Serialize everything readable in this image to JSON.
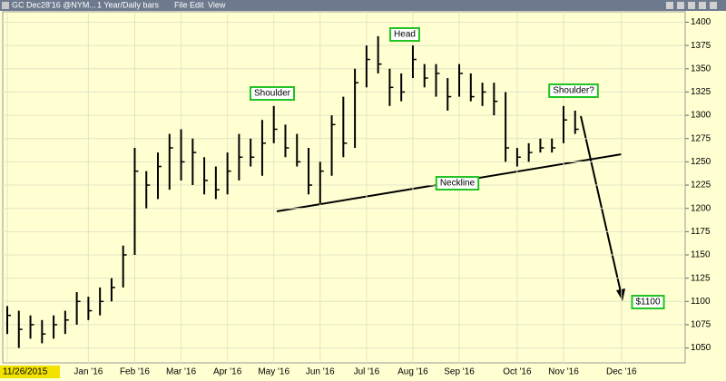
{
  "chart_data": {
    "type": "ohlc",
    "title": "GC Dec28'16 @NYM...",
    "subtitle": "1 Year/Daily bars",
    "menu": [
      "File",
      "Edit",
      "View"
    ],
    "categories": [
      "11/26/2015",
      null,
      null,
      null,
      null,
      null,
      null,
      "Jan '16",
      null,
      null,
      null,
      "Feb '16",
      null,
      null,
      null,
      "Mar '16",
      null,
      null,
      null,
      "Apr '16",
      null,
      null,
      null,
      "May '16",
      null,
      null,
      null,
      "Jun '16",
      null,
      null,
      null,
      "Jul '16",
      null,
      null,
      null,
      "Aug '16",
      null,
      null,
      null,
      "Sep '16",
      null,
      null,
      null,
      null,
      "Oct '16",
      null,
      null,
      null,
      "Nov '16",
      null,
      null,
      null,
      null,
      "Dec '16"
    ],
    "high": [
      1095,
      1090,
      1085,
      1080,
      1085,
      1090,
      1110,
      1105,
      1115,
      1125,
      1160,
      1265,
      1240,
      1260,
      1280,
      1285,
      1275,
      1255,
      1245,
      1260,
      1280,
      1275,
      1295,
      1310,
      1290,
      1280,
      1265,
      1250,
      1300,
      1320,
      1350,
      1375,
      1385,
      1350,
      1345,
      1375,
      1355,
      1355,
      1340,
      1355,
      1345,
      1335,
      1335,
      1325,
      1265,
      1270,
      1275,
      1275,
      1310,
      1305,
      null,
      null,
      null,
      null
    ],
    "low": [
      1065,
      1050,
      1060,
      1055,
      1060,
      1065,
      1075,
      1080,
      1085,
      1100,
      1115,
      1150,
      1200,
      1210,
      1220,
      1230,
      1225,
      1215,
      1210,
      1215,
      1230,
      1245,
      1235,
      1270,
      1255,
      1245,
      1215,
      1205,
      1235,
      1255,
      1265,
      1330,
      1345,
      1310,
      1315,
      1340,
      1330,
      1320,
      1305,
      1320,
      1315,
      1310,
      1300,
      1250,
      1245,
      1250,
      1260,
      1260,
      1270,
      1280,
      null,
      null,
      null,
      null
    ],
    "close": [
      1085,
      1070,
      1075,
      1065,
      1075,
      1080,
      1100,
      1090,
      1100,
      1115,
      1150,
      1240,
      1225,
      1245,
      1265,
      1250,
      1260,
      1230,
      1220,
      1240,
      1255,
      1255,
      1270,
      1285,
      1265,
      1250,
      1225,
      1240,
      1290,
      1270,
      1335,
      1360,
      1355,
      1330,
      1325,
      1360,
      1340,
      1345,
      1320,
      1345,
      1320,
      1325,
      1315,
      1265,
      1255,
      1260,
      1265,
      1265,
      1295,
      1285,
      null,
      null,
      null,
      null
    ],
    "color": "#000000",
    "ylim": [
      1034,
      1419
    ],
    "yticks": [
      1050,
      1075,
      1100,
      1125,
      1150,
      1175,
      1200,
      1225,
      1250,
      1275,
      1300,
      1325,
      1350,
      1375,
      1400
    ],
    "grid": true,
    "annotations": [
      "Head",
      "Shoulder",
      "Shoulder?",
      "Neckline",
      "$1100"
    ]
  }
}
